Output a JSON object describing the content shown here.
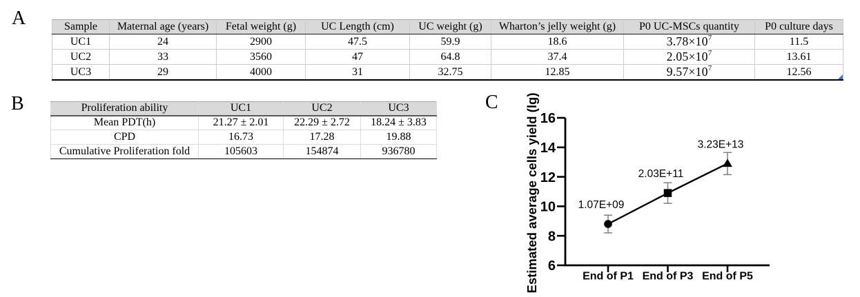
{
  "panels": {
    "a": "A",
    "b": "B",
    "c": "C"
  },
  "table_a": {
    "headers": [
      "Sample",
      "Maternal age (years)",
      "Fetal weight (g)",
      "UC Length (cm)",
      "UC weight (g)",
      "Wharton’s jelly weight (g)",
      "P0 UC-MSCs quantity",
      "P0 culture days"
    ],
    "rows": [
      {
        "sample": "UC1",
        "maternal_age": "24",
        "fetal_weight": "2900",
        "uc_length": "47.5",
        "uc_weight": "59.9",
        "wharton": "18.6",
        "p0_qty_base": "3.78×10",
        "p0_qty_exp": "7",
        "p0_days": "11.5"
      },
      {
        "sample": "UC2",
        "maternal_age": "33",
        "fetal_weight": "3560",
        "uc_length": "47",
        "uc_weight": "64.8",
        "wharton": "37.4",
        "p0_qty_base": "2.05×10",
        "p0_qty_exp": "7",
        "p0_days": "13.61"
      },
      {
        "sample": "UC3",
        "maternal_age": "29",
        "fetal_weight": "4000",
        "uc_length": "31",
        "uc_weight": "32.75",
        "wharton": "12.85",
        "p0_qty_base": "9.57×10",
        "p0_qty_exp": "7",
        "p0_days": "12.56"
      }
    ]
  },
  "table_b": {
    "headers": [
      "Proliferation ability",
      "UC1",
      "UC2",
      "UC3"
    ],
    "rows": [
      {
        "label": "Mean PDT(h)",
        "uc1": "21.27 ± 2.01",
        "uc2": "22.29 ± 2.72",
        "uc3": "18.24 ± 3.83"
      },
      {
        "label": "CPD",
        "uc1": "16.73",
        "uc2": "17.28",
        "uc3": "19.88"
      },
      {
        "label": "Cumulative Proliferation fold",
        "uc1": "105603",
        "uc2": "154874",
        "uc3": "936780"
      }
    ]
  },
  "chart_data": {
    "type": "line",
    "categories": [
      "End of P1",
      "End of P3",
      "End of P5"
    ],
    "values": [
      8.8,
      10.9,
      12.9
    ],
    "errors": [
      0.6,
      0.7,
      0.75
    ],
    "point_labels": [
      "1.07E+09",
      "2.03E+11",
      "3.23E+13"
    ],
    "markers": [
      "circle",
      "square",
      "triangle"
    ],
    "ylabel": "Estimated average cells yield (lg)",
    "ylim": [
      6,
      16
    ],
    "yticks": [
      6,
      8,
      10,
      12,
      14,
      16
    ],
    "line_color": "#000000",
    "error_color": "#7f7f7f"
  }
}
